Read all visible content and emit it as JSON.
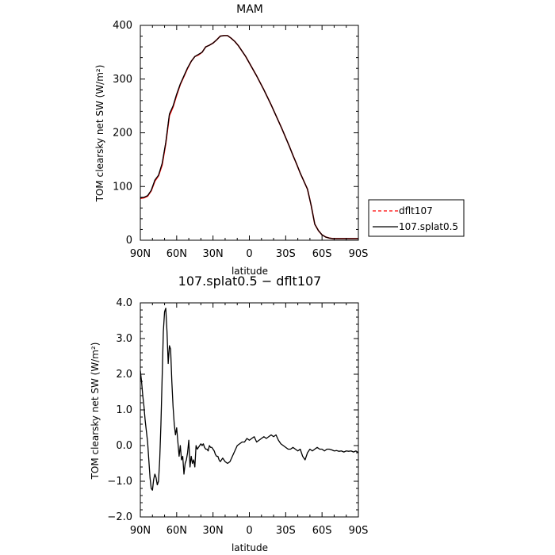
{
  "chart_data": [
    {
      "type": "line",
      "title": "MAM",
      "xlabel": "latitude",
      "ylabel": "TOM clearsky net SW (W/m²)",
      "xlim": [
        90,
        -90
      ],
      "ylim": [
        0,
        400
      ],
      "x_ticks": [
        90,
        60,
        30,
        0,
        -30,
        -60,
        -90
      ],
      "x_tick_labels": [
        "90N",
        "60N",
        "30N",
        "0",
        "30S",
        "60S",
        "90S"
      ],
      "y_ticks": [
        0,
        100,
        200,
        300,
        400
      ],
      "y_tick_labels": [
        "0",
        "100",
        "200",
        "300",
        "400"
      ],
      "legend": {
        "placement": "right",
        "entries": [
          {
            "name": "dflt107",
            "color": "#ff0000",
            "dash": "dashed"
          },
          {
            "name": "107.splat0.5",
            "color": "#000000",
            "dash": "solid"
          }
        ]
      },
      "series": [
        {
          "name": "dflt107",
          "color": "#ff0000",
          "x": [
            90,
            87,
            84,
            81,
            78,
            75,
            72,
            69,
            66,
            63,
            60,
            57,
            54,
            51,
            48,
            45,
            42,
            39,
            36,
            33,
            30,
            27,
            24,
            21,
            18,
            15,
            12,
            9,
            6,
            3,
            0,
            -3,
            -6,
            -9,
            -12,
            -15,
            -18,
            -21,
            -24,
            -27,
            -30,
            -33,
            -36,
            -39,
            -42,
            -45,
            -48,
            -51,
            -54,
            -57,
            -60,
            -63,
            -66,
            -69,
            -72,
            -75,
            -78,
            -81,
            -84,
            -87,
            -90
          ],
          "y": [
            78,
            79,
            82,
            92,
            110,
            120,
            140,
            180,
            232,
            248,
            270,
            290,
            305,
            320,
            333,
            342,
            345,
            350,
            360,
            363,
            367,
            373,
            380,
            381,
            381,
            376,
            370,
            362,
            352,
            342,
            330,
            318,
            306,
            293,
            280,
            266,
            252,
            237,
            222,
            207,
            191,
            175,
            158,
            142,
            125,
            110,
            95,
            65,
            30,
            18,
            10,
            6,
            4,
            3,
            3,
            3,
            3,
            3,
            3,
            3,
            3
          ]
        },
        {
          "name": "107.splat0.5",
          "color": "#000000",
          "x": [
            90,
            87,
            84,
            81,
            78,
            75,
            72,
            69,
            66,
            63,
            60,
            57,
            54,
            51,
            48,
            45,
            42,
            39,
            36,
            33,
            30,
            27,
            24,
            21,
            18,
            15,
            12,
            9,
            6,
            3,
            0,
            -3,
            -6,
            -9,
            -12,
            -15,
            -18,
            -21,
            -24,
            -27,
            -30,
            -33,
            -36,
            -39,
            -42,
            -45,
            -48,
            -51,
            -54,
            -57,
            -60,
            -63,
            -66,
            -69,
            -72,
            -75,
            -78,
            -81,
            -84,
            -87,
            -90
          ],
          "y": [
            79,
            80,
            83,
            93,
            112,
            121,
            143,
            182,
            235,
            250,
            272,
            291,
            306,
            321,
            333,
            342,
            346,
            350,
            360,
            363,
            367,
            373,
            380,
            381,
            381,
            376,
            370,
            362,
            352,
            342,
            330,
            318,
            306,
            293,
            280,
            266,
            252,
            237,
            222,
            207,
            191,
            175,
            158,
            142,
            125,
            110,
            95,
            65,
            30,
            18,
            10,
            6,
            4,
            3,
            3,
            3,
            3,
            3,
            3,
            3,
            3
          ]
        }
      ]
    },
    {
      "type": "line",
      "title": "107.splat0.5 − dflt107",
      "xlabel": "latitude",
      "ylabel": "TOM clearsky net SW (W/m²)",
      "xlim": [
        90,
        -90
      ],
      "ylim": [
        -2.0,
        4.0
      ],
      "x_ticks": [
        90,
        60,
        30,
        0,
        -30,
        -60,
        -90
      ],
      "x_tick_labels": [
        "90N",
        "60N",
        "30N",
        "0",
        "30S",
        "60S",
        "90S"
      ],
      "y_ticks": [
        -2.0,
        -1.0,
        0.0,
        1.0,
        2.0,
        3.0,
        4.0
      ],
      "y_tick_labels": [
        "−2.0",
        "−1.0",
        "0.0",
        "1.0",
        "2.0",
        "3.0",
        "4.0"
      ],
      "series": [
        {
          "name": "107.splat0.5 − dflt107",
          "color": "#000000",
          "x": [
            90,
            89,
            88,
            87,
            86,
            85,
            84,
            83,
            82,
            81,
            80,
            79,
            78,
            77,
            76,
            75,
            74,
            73,
            72,
            71,
            70,
            69,
            68,
            67,
            66,
            65,
            64,
            63,
            62,
            61,
            60,
            59,
            58,
            57,
            56,
            55,
            54,
            53,
            52,
            51,
            50,
            49,
            48,
            47,
            46,
            45,
            44,
            43,
            42,
            41,
            40,
            39,
            38,
            37,
            36,
            35,
            34,
            33,
            32,
            31,
            30,
            29,
            28,
            27,
            26,
            25,
            24,
            22,
            20,
            18,
            16,
            14,
            12,
            10,
            8,
            6,
            4,
            2,
            0,
            -2,
            -4,
            -6,
            -8,
            -10,
            -12,
            -14,
            -16,
            -18,
            -20,
            -22,
            -24,
            -26,
            -28,
            -30,
            -32,
            -34,
            -36,
            -38,
            -40,
            -42,
            -44,
            -46,
            -48,
            -50,
            -52,
            -54,
            -56,
            -58,
            -60,
            -62,
            -64,
            -66,
            -68,
            -70,
            -72,
            -74,
            -76,
            -78,
            -80,
            -82,
            -84,
            -86,
            -88,
            -90
          ],
          "y": [
            2.1,
            1.8,
            1.4,
            1.1,
            0.7,
            0.4,
            0.1,
            -0.4,
            -0.9,
            -1.2,
            -1.25,
            -0.95,
            -0.8,
            -0.9,
            -1.1,
            -1.0,
            -0.4,
            0.6,
            1.9,
            3.2,
            3.75,
            3.85,
            3.2,
            2.3,
            2.8,
            2.7,
            1.8,
            1.1,
            0.6,
            0.3,
            0.5,
            0.1,
            -0.3,
            0.0,
            -0.4,
            -0.3,
            -0.8,
            -0.5,
            -0.4,
            -0.2,
            0.15,
            -0.6,
            -0.3,
            -0.5,
            -0.4,
            -0.6,
            0.0,
            -0.1,
            -0.05,
            0.0,
            0.05,
            0.0,
            0.05,
            -0.05,
            -0.1,
            -0.1,
            -0.15,
            0.0,
            -0.05,
            -0.05,
            -0.1,
            -0.15,
            -0.25,
            -0.3,
            -0.3,
            -0.4,
            -0.45,
            -0.35,
            -0.45,
            -0.5,
            -0.45,
            -0.3,
            -0.15,
            0.0,
            0.05,
            0.1,
            0.1,
            0.2,
            0.15,
            0.2,
            0.25,
            0.1,
            0.15,
            0.2,
            0.25,
            0.2,
            0.25,
            0.3,
            0.25,
            0.3,
            0.15,
            0.05,
            0.0,
            -0.05,
            -0.1,
            -0.1,
            -0.05,
            -0.1,
            -0.15,
            -0.1,
            -0.3,
            -0.4,
            -0.2,
            -0.1,
            -0.15,
            -0.1,
            -0.05,
            -0.1,
            -0.1,
            -0.15,
            -0.1,
            -0.1,
            -0.12,
            -0.15,
            -0.14,
            -0.16,
            -0.15,
            -0.18,
            -0.15,
            -0.16,
            -0.15,
            -0.18,
            -0.15,
            -0.2
          ]
        }
      ]
    }
  ]
}
